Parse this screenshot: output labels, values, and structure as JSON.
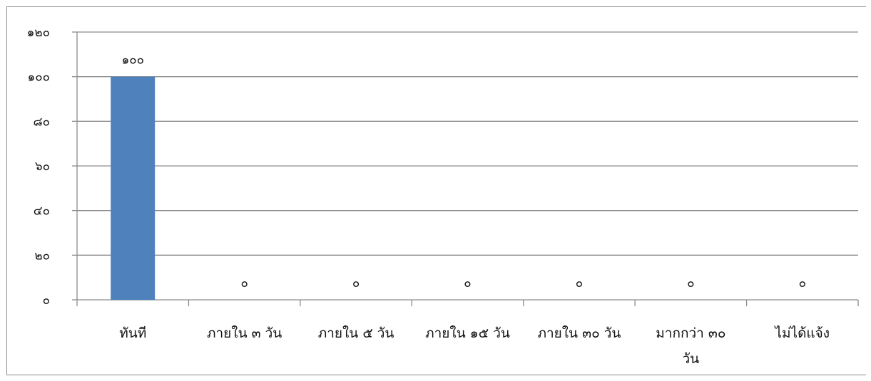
{
  "chart_data": {
    "type": "bar",
    "categories": [
      [
        "ทันที"
      ],
      [
        "ภายใน ๓ วัน"
      ],
      [
        "ภายใน ๕ วัน"
      ],
      [
        "ภายใน ๑๕ วัน"
      ],
      [
        "ภายใน ๓๐ วัน"
      ],
      [
        "มากกว่า ๓๐",
        "วัน"
      ],
      [
        "ไม่ได้แจ้ง"
      ]
    ],
    "values": [
      100,
      0,
      0,
      0,
      0,
      0,
      0
    ],
    "value_labels": [
      "๑๐๐",
      "๐",
      "๐",
      "๐",
      "๐",
      "๐",
      "๐"
    ],
    "ylim": [
      0,
      120
    ],
    "yticks": [
      0,
      20,
      40,
      60,
      80,
      100,
      120
    ],
    "ytick_labels": [
      "๐",
      "๒๐",
      "๔๐",
      "๖๐",
      "๘๐",
      "๑๐๐",
      "๑๒๐"
    ],
    "grid": true,
    "legend": "none",
    "bar_color": "#4f81bd",
    "grid_color": "#8c8c8c"
  }
}
